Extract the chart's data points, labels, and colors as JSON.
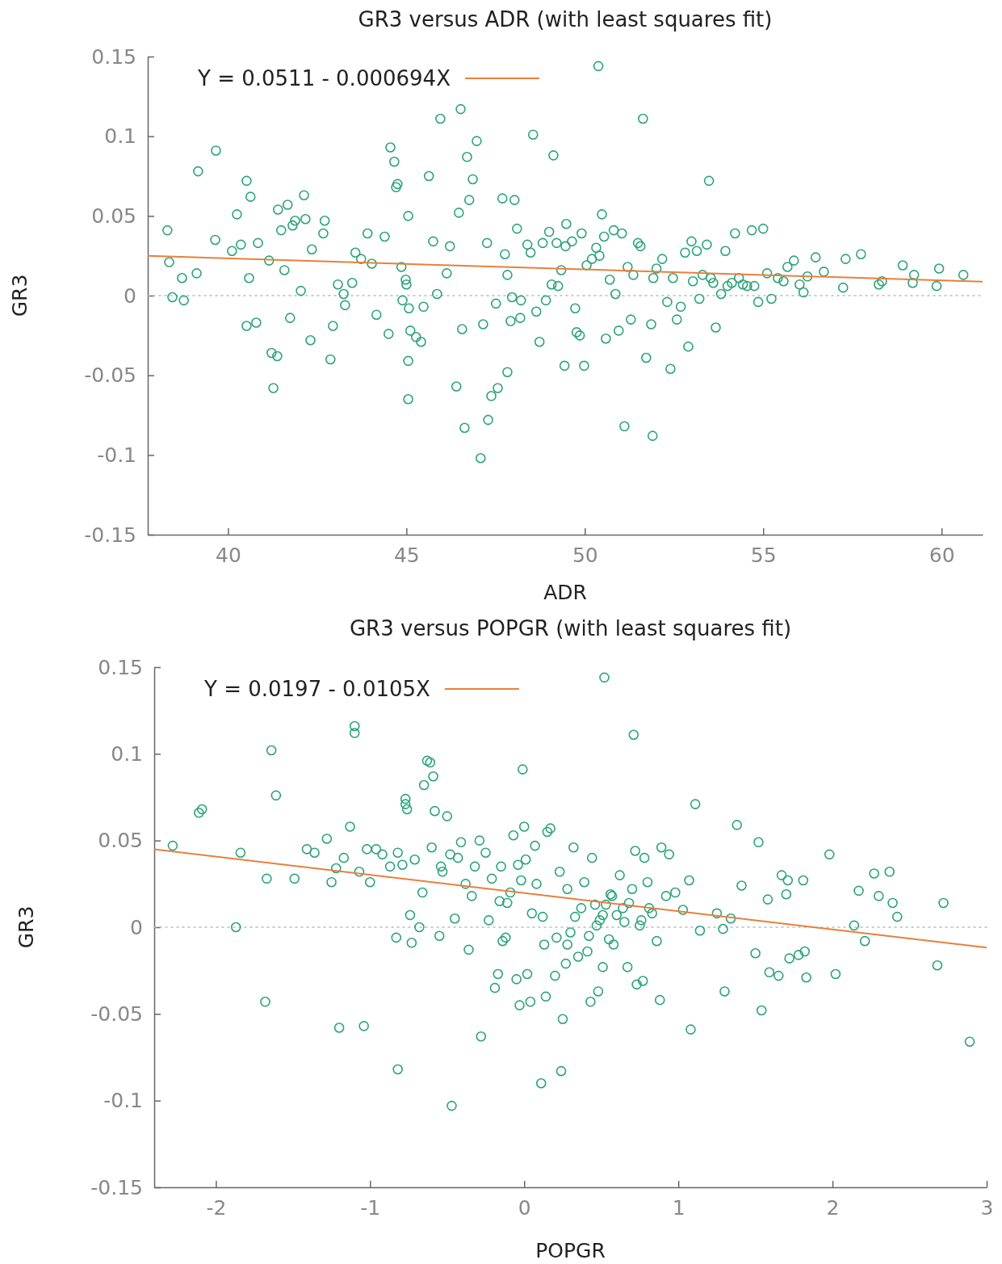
{
  "chart_data": [
    {
      "type": "scatter",
      "title": "GR3 versus ADR (with least squares fit)",
      "xlabel": "ADR",
      "ylabel": "GR3",
      "xlim": [
        37.75,
        61.15
      ],
      "xticks": [
        40,
        45,
        50,
        55,
        60
      ],
      "ylim": [
        -0.15,
        0.15
      ],
      "yticks": [
        -0.15,
        -0.1,
        -0.05,
        0,
        0.05,
        0.1,
        0.15
      ],
      "grid": false,
      "legend": "top left",
      "ref_lines": [
        {
          "axis": "y",
          "value": 0,
          "color": "#bbbbbb",
          "line_style": "dotted"
        }
      ],
      "series": [
        {
          "marker": "circle",
          "color": "#2ca47a",
          "x": [
            38.3,
            38.35,
            38.44,
            38.71,
            38.76,
            39.12,
            39.16,
            39.66,
            39.64,
            40.11,
            40.25,
            40.36,
            40.52,
            40.63,
            40.59,
            40.52,
            40.79,
            40.84,
            41.15,
            41.22,
            41.27,
            41.38,
            41.4,
            41.49,
            41.58,
            41.67,
            41.74,
            41.81,
            41.88,
            42.04,
            42.13,
            42.17,
            42.31,
            42.35,
            42.67,
            42.71,
            42.87,
            42.94,
            43.08,
            43.24,
            43.28,
            43.48,
            43.57,
            43.73,
            43.91,
            44.03,
            44.16,
            44.39,
            44.5,
            44.55,
            44.66,
            44.71,
            44.75,
            44.86,
            44.89,
            44.98,
            45.0,
            45.05,
            45.07,
            45.05,
            45.05,
            45.11,
            45.27,
            45.41,
            45.48,
            45.63,
            45.75,
            45.86,
            45.95,
            46.13,
            46.22,
            46.4,
            46.47,
            46.52,
            46.56,
            46.63,
            46.7,
            46.76,
            46.86,
            46.97,
            47.08,
            47.15,
            47.26,
            47.29,
            47.38,
            47.51,
            47.56,
            47.69,
            47.76,
            47.83,
            47.83,
            47.92,
            47.96,
            48.03,
            48.1,
            48.19,
            48.21,
            48.39,
            48.48,
            48.55,
            48.64,
            48.73,
            48.82,
            48.91,
            49.0,
            49.12,
            49.21,
            49.25,
            49.34,
            49.43,
            49.48,
            49.64,
            49.73,
            49.77,
            49.86,
            49.91,
            49.98,
            50.05,
            50.2,
            50.32,
            50.41,
            50.48,
            50.54,
            50.59,
            50.7,
            50.81,
            50.86,
            50.95,
            51.04,
            51.11,
            51.2,
            51.29,
            51.36,
            51.49,
            51.56,
            51.63,
            51.72,
            51.86,
            51.92,
            51.9,
            52.01,
            52.17,
            52.31,
            52.4,
            52.47,
            52.58,
            52.69,
            52.81,
            52.9,
            52.99,
            53.03,
            53.14,
            53.21,
            53.3,
            53.42,
            53.48,
            53.53,
            53.6,
            53.67,
            53.82,
            53.94,
            54.0,
            54.12,
            54.21,
            54.32,
            54.43,
            54.55,
            54.68,
            54.75,
            54.86,
            55.0,
            55.11,
            55.23,
            55.41,
            55.57,
            55.68,
            55.86,
            56.02,
            56.13,
            56.24,
            56.47,
            56.7,
            57.24,
            57.31,
            57.74,
            58.24,
            58.33,
            58.91,
            59.19,
            59.23,
            59.86,
            59.93,
            60.61,
            50.38,
            49.07,
            49.46
          ],
          "values": [
            0.041,
            0.021,
            -0.001,
            0.011,
            -0.003,
            0.014,
            0.078,
            0.091,
            0.035,
            0.028,
            0.051,
            0.032,
            0.072,
            0.062,
            0.011,
            -0.019,
            -0.017,
            0.033,
            0.022,
            -0.036,
            -0.058,
            -0.038,
            0.054,
            0.041,
            0.016,
            0.057,
            -0.014,
            0.044,
            0.047,
            0.003,
            0.063,
            0.048,
            -0.028,
            0.029,
            0.039,
            0.047,
            -0.04,
            -0.019,
            0.007,
            0.001,
            -0.006,
            0.008,
            0.027,
            0.023,
            0.039,
            0.02,
            -0.012,
            0.037,
            -0.024,
            0.093,
            0.084,
            0.068,
            0.07,
            0.018,
            -0.003,
            0.01,
            0.007,
            0.05,
            -0.008,
            -0.041,
            -0.065,
            -0.022,
            -0.026,
            -0.029,
            -0.007,
            0.075,
            0.034,
            0.001,
            0.111,
            0.014,
            0.031,
            -0.057,
            0.052,
            0.117,
            -0.021,
            -0.083,
            0.087,
            0.06,
            0.073,
            0.097,
            -0.102,
            -0.018,
            0.033,
            -0.078,
            -0.063,
            -0.005,
            -0.058,
            0.061,
            0.026,
            0.013,
            -0.048,
            -0.016,
            -0.001,
            0.06,
            0.042,
            -0.014,
            -0.003,
            0.032,
            0.027,
            0.101,
            -0.01,
            -0.029,
            0.033,
            -0.003,
            0.04,
            0.088,
            0.033,
            0.006,
            0.016,
            -0.044,
            0.045,
            0.034,
            -0.008,
            -0.023,
            -0.025,
            0.039,
            -0.044,
            0.019,
            0.023,
            0.03,
            0.025,
            0.051,
            0.037,
            -0.027,
            0.01,
            0.041,
            0.001,
            -0.022,
            0.039,
            -0.082,
            0.018,
            -0.015,
            0.013,
            0.033,
            0.031,
            0.111,
            -0.039,
            -0.018,
            0.011,
            -0.088,
            0.017,
            0.023,
            -0.004,
            -0.046,
            0.011,
            -0.015,
            -0.007,
            0.027,
            -0.032,
            0.034,
            0.009,
            0.028,
            -0.002,
            0.013,
            0.032,
            0.072,
            0.011,
            0.008,
            -0.02,
            0.001,
            0.028,
            0.006,
            0.008,
            0.039,
            0.011,
            0.007,
            0.006,
            0.041,
            0.006,
            -0.004,
            0.042,
            0.014,
            -0.002,
            0.011,
            0.009,
            0.018,
            0.022,
            0.007,
            0.002,
            0.012,
            0.024,
            0.015,
            0.005,
            0.023,
            0.026,
            0.007,
            0.009,
            0.019,
            0.008,
            0.013,
            0.006,
            0.017,
            0.013,
            0.144,
            0.007,
            0.031
          ]
        },
        {
          "type": "line",
          "marker": "none",
          "name": "Y = 0.0511 - 0.000694X",
          "color": "#e8803a",
          "x": [
            37.75,
            61.15
          ],
          "values": [
            0.0249,
            0.0087
          ]
        }
      ]
    },
    {
      "type": "scatter",
      "title": "GR3 versus POPGR (with least squares fit)",
      "xlabel": "POPGR",
      "ylabel": "GR3",
      "xlim": [
        -2.4,
        3
      ],
      "xticks": [
        -2,
        -1,
        0,
        1,
        2,
        3
      ],
      "ylim": [
        -0.15,
        0.15
      ],
      "yticks": [
        -0.15,
        -0.1,
        -0.05,
        0,
        0.05,
        0.1,
        0.15
      ],
      "grid": false,
      "legend": "top left",
      "ref_lines": [
        {
          "axis": "y",
          "value": 0,
          "color": "#bbbbbb",
          "line_style": "dotted"
        }
      ],
      "series": [
        {
          "marker": "circle",
          "color": "#2ca47a",
          "x": [
            -2.28,
            -2.11,
            -2.09,
            -1.87,
            -1.84,
            -1.68,
            -1.67,
            -1.64,
            -1.61,
            -1.49,
            -1.41,
            -1.36,
            -1.28,
            -1.25,
            -1.22,
            -1.2,
            -1.17,
            -1.13,
            -1.1,
            -1.1,
            -1.07,
            -1.04,
            -1.02,
            -1.0,
            -0.96,
            -0.92,
            -0.87,
            -0.83,
            -0.82,
            -0.82,
            -0.79,
            -0.77,
            -0.77,
            -0.76,
            -0.74,
            -0.73,
            -0.71,
            -0.68,
            -0.66,
            -0.65,
            -0.63,
            -0.61,
            -0.6,
            -0.59,
            -0.58,
            -0.55,
            -0.54,
            -0.53,
            -0.5,
            -0.48,
            -0.47,
            -0.45,
            -0.43,
            -0.41,
            -0.38,
            -0.36,
            -0.34,
            -0.32,
            -0.29,
            -0.28,
            -0.25,
            -0.23,
            -0.21,
            -0.19,
            -0.17,
            -0.15,
            -0.14,
            -0.12,
            -0.11,
            -0.09,
            -0.07,
            -0.05,
            -0.04,
            -0.03,
            -0.02,
            -0.01,
            0.0,
            0.01,
            0.02,
            0.04,
            0.05,
            0.07,
            0.08,
            0.11,
            0.12,
            0.13,
            0.14,
            0.15,
            0.17,
            0.2,
            0.21,
            0.23,
            0.24,
            0.25,
            0.27,
            0.28,
            0.3,
            0.32,
            0.33,
            0.35,
            0.37,
            0.39,
            0.41,
            0.42,
            0.43,
            0.44,
            0.46,
            0.47,
            0.48,
            0.49,
            0.51,
            0.52,
            0.53,
            0.55,
            0.56,
            0.58,
            0.6,
            0.62,
            0.64,
            0.65,
            0.67,
            0.68,
            0.7,
            0.71,
            0.72,
            0.73,
            0.75,
            0.76,
            0.77,
            0.78,
            0.8,
            0.81,
            0.83,
            0.86,
            0.88,
            0.89,
            0.92,
            0.94,
            0.98,
            1.03,
            1.07,
            1.08,
            1.11,
            1.14,
            1.25,
            1.29,
            1.3,
            1.34,
            1.38,
            1.41,
            1.5,
            1.52,
            1.54,
            1.58,
            1.59,
            1.65,
            1.67,
            1.7,
            1.71,
            1.72,
            1.78,
            1.81,
            1.82,
            1.83,
            1.98,
            2.02,
            2.14,
            2.17,
            2.21,
            2.27,
            2.3,
            2.37,
            2.39,
            2.42,
            2.68,
            2.72,
            2.89,
            0.51,
            0.28,
            -0.16,
            0.57
          ],
          "values": [
            0.047,
            0.066,
            0.068,
            0.0,
            0.043,
            -0.043,
            0.028,
            0.102,
            0.076,
            0.028,
            0.045,
            0.043,
            0.051,
            0.026,
            0.034,
            -0.058,
            0.04,
            0.058,
            0.116,
            0.112,
            0.032,
            -0.057,
            0.045,
            0.026,
            0.045,
            0.042,
            0.035,
            -0.006,
            0.043,
            -0.082,
            0.036,
            0.074,
            0.071,
            0.068,
            0.007,
            -0.009,
            0.039,
            0.0,
            0.02,
            0.082,
            0.096,
            0.095,
            0.046,
            0.087,
            0.067,
            -0.005,
            0.035,
            0.032,
            0.064,
            0.042,
            -0.103,
            0.005,
            0.04,
            0.049,
            0.025,
            -0.013,
            0.018,
            0.035,
            0.05,
            -0.063,
            0.043,
            0.004,
            0.028,
            -0.035,
            -0.027,
            0.035,
            -0.008,
            -0.006,
            0.014,
            0.02,
            0.053,
            -0.03,
            0.036,
            -0.045,
            0.027,
            0.091,
            0.058,
            0.039,
            -0.027,
            -0.043,
            0.008,
            0.047,
            0.025,
            -0.09,
            0.006,
            -0.01,
            -0.04,
            0.055,
            0.057,
            -0.028,
            -0.006,
            0.032,
            -0.083,
            -0.053,
            -0.021,
            0.022,
            -0.003,
            0.046,
            0.006,
            -0.017,
            0.011,
            0.026,
            -0.014,
            -0.005,
            -0.043,
            0.04,
            0.013,
            0.001,
            -0.037,
            0.004,
            -0.023,
            0.144,
            0.013,
            -0.007,
            0.019,
            -0.01,
            0.007,
            0.03,
            0.011,
            0.003,
            -0.023,
            0.014,
            0.022,
            0.111,
            0.044,
            -0.033,
            0.001,
            0.004,
            -0.031,
            0.04,
            0.026,
            0.011,
            0.008,
            -0.008,
            -0.042,
            0.046,
            0.018,
            0.042,
            0.02,
            0.01,
            0.027,
            -0.059,
            0.071,
            -0.002,
            0.008,
            -0.001,
            -0.037,
            0.005,
            0.059,
            0.024,
            -0.015,
            0.049,
            -0.048,
            0.016,
            -0.026,
            -0.028,
            0.03,
            0.019,
            0.027,
            -0.018,
            -0.016,
            0.027,
            -0.014,
            -0.029,
            0.042,
            -0.027,
            0.001,
            0.021,
            -0.008,
            0.031,
            0.018,
            0.032,
            0.014,
            0.006,
            -0.022,
            0.014,
            -0.066,
            0.007,
            -0.01,
            0.015,
            0.018
          ]
        },
        {
          "type": "line",
          "marker": "none",
          "name": "Y = 0.0197 - 0.0105X",
          "color": "#e8803a",
          "x": [
            -2.4,
            3
          ],
          "values": [
            0.0449,
            -0.0118
          ]
        }
      ]
    }
  ]
}
